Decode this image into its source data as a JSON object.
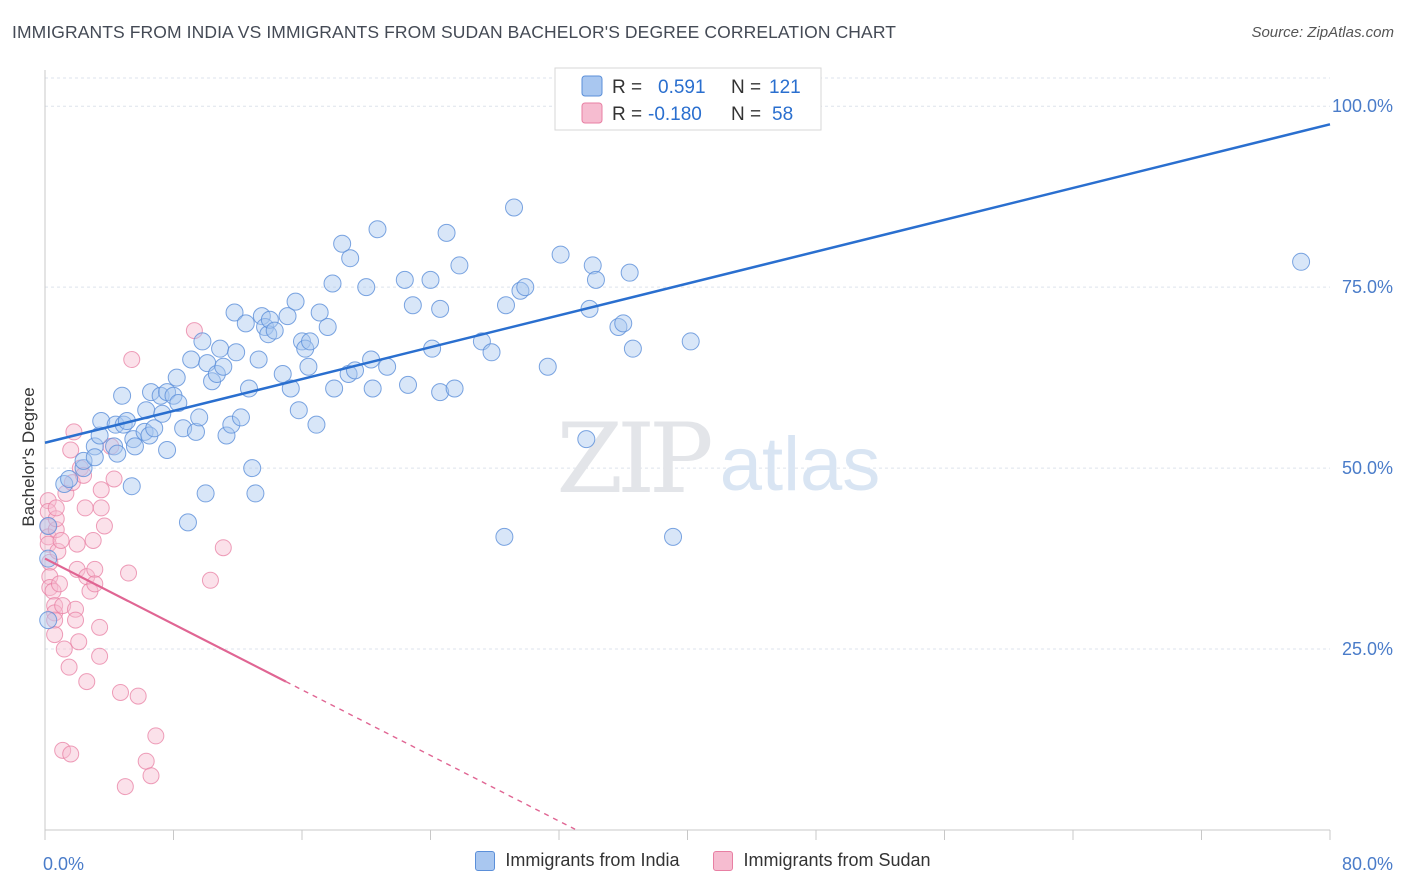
{
  "title": "IMMIGRANTS FROM INDIA VS IMMIGRANTS FROM SUDAN BACHELOR'S DEGREE CORRELATION CHART",
  "source": "Source: ZipAtlas.com",
  "watermark": {
    "zip": "ZIP",
    "atlas": "atlas"
  },
  "colors": {
    "india_fill": "#a9c7f0",
    "india_stroke": "#5b8fd9",
    "india_line": "#2a6fcf",
    "sudan_fill": "#f6bcd0",
    "sudan_stroke": "#e87fa3",
    "sudan_line": "#e06593",
    "tick_label": "#4a7cc9",
    "grid": "#dde3ec"
  },
  "legend": {
    "rows": [
      {
        "r_label": "R =",
        "r_value": "0.591",
        "n_label": "N =",
        "n_value": "121"
      },
      {
        "r_label": "R =",
        "r_value": "-0.180",
        "n_label": "N =",
        "n_value": "58"
      }
    ]
  },
  "bottom_legend": {
    "india": "Immigrants from India",
    "sudan": "Immigrants from Sudan"
  },
  "chart_data": {
    "type": "scatter",
    "xlim": [
      0,
      80
    ],
    "ylim": [
      0,
      105
    ],
    "ylabel": "Bachelor's Degree",
    "x_tick_labels": [
      {
        "value": 0,
        "label": "0.0%"
      },
      {
        "value": 80,
        "label": "80.0%"
      }
    ],
    "y_tick_labels": [
      {
        "value": 25,
        "label": "25.0%"
      },
      {
        "value": 50,
        "label": "50.0%"
      },
      {
        "value": 75,
        "label": "75.0%"
      },
      {
        "value": 100,
        "label": "100.0%"
      }
    ],
    "grid": true,
    "series": [
      {
        "name": "Immigrants from India",
        "trend": {
          "x0": 0,
          "y0": 53.5,
          "x1": 80,
          "y1": 97.5
        },
        "points": [
          [
            0.2,
            42
          ],
          [
            0.2,
            37.5
          ],
          [
            0.2,
            29
          ],
          [
            1.2,
            47.8
          ],
          [
            1.5,
            48.5
          ],
          [
            2.4,
            50
          ],
          [
            2.4,
            51
          ],
          [
            3.1,
            53
          ],
          [
            3.1,
            51.5
          ],
          [
            3.4,
            54.5
          ],
          [
            3.5,
            56.5
          ],
          [
            4.3,
            53
          ],
          [
            4.4,
            56
          ],
          [
            4.5,
            52
          ],
          [
            4.8,
            60
          ],
          [
            4.9,
            56
          ],
          [
            5.1,
            56.5
          ],
          [
            5.4,
            47.5
          ],
          [
            5.5,
            54
          ],
          [
            5.6,
            53
          ],
          [
            6.2,
            55
          ],
          [
            6.3,
            58
          ],
          [
            6.5,
            54.5
          ],
          [
            6.6,
            60.5
          ],
          [
            6.8,
            55.5
          ],
          [
            7.2,
            60
          ],
          [
            7.3,
            57.5
          ],
          [
            7.6,
            60.5
          ],
          [
            7.6,
            52.5
          ],
          [
            8,
            60
          ],
          [
            8.2,
            62.5
          ],
          [
            8.3,
            59
          ],
          [
            8.6,
            55.5
          ],
          [
            8.9,
            42.5
          ],
          [
            9.1,
            65
          ],
          [
            9.4,
            55
          ],
          [
            9.6,
            57
          ],
          [
            9.8,
            67.5
          ],
          [
            10,
            46.5
          ],
          [
            10.1,
            64.5
          ],
          [
            10.4,
            62
          ],
          [
            10.7,
            63
          ],
          [
            10.9,
            66.5
          ],
          [
            11.1,
            64
          ],
          [
            11.3,
            54.5
          ],
          [
            11.6,
            56
          ],
          [
            11.8,
            71.5
          ],
          [
            11.9,
            66
          ],
          [
            12.2,
            57
          ],
          [
            12.5,
            70
          ],
          [
            12.7,
            61
          ],
          [
            12.9,
            50
          ],
          [
            13.1,
            46.5
          ],
          [
            13.3,
            65
          ],
          [
            13.5,
            71
          ],
          [
            13.7,
            69.5
          ],
          [
            13.9,
            68.5
          ],
          [
            14,
            70.5
          ],
          [
            14.3,
            69
          ],
          [
            14.8,
            63
          ],
          [
            15.1,
            71
          ],
          [
            15.3,
            61
          ],
          [
            15.6,
            73
          ],
          [
            15.8,
            58
          ],
          [
            16,
            67.5
          ],
          [
            16.2,
            66.5
          ],
          [
            16.4,
            64
          ],
          [
            16.5,
            67.5
          ],
          [
            16.9,
            56
          ],
          [
            17.1,
            71.5
          ],
          [
            17.6,
            69.5
          ],
          [
            17.9,
            75.5
          ],
          [
            18,
            61
          ],
          [
            18.5,
            81
          ],
          [
            18.9,
            63
          ],
          [
            19,
            79
          ],
          [
            19.3,
            63.5
          ],
          [
            20,
            75
          ],
          [
            20.3,
            65
          ],
          [
            20.4,
            61
          ],
          [
            20.7,
            83
          ],
          [
            21.3,
            64
          ],
          [
            22.4,
            76
          ],
          [
            22.6,
            61.5
          ],
          [
            22.9,
            72.5
          ],
          [
            24,
            76
          ],
          [
            24.1,
            66.5
          ],
          [
            24.6,
            72
          ],
          [
            24.6,
            60.5
          ],
          [
            25,
            82.5
          ],
          [
            25.5,
            61
          ],
          [
            25.8,
            78
          ],
          [
            27.2,
            67.5
          ],
          [
            27.8,
            66
          ],
          [
            28.6,
            40.5
          ],
          [
            28.7,
            72.5
          ],
          [
            29.2,
            86
          ],
          [
            29.6,
            74.5
          ],
          [
            29.9,
            75
          ],
          [
            31.3,
            64
          ],
          [
            32.1,
            79.5
          ],
          [
            33.7,
            54
          ],
          [
            33.9,
            72
          ],
          [
            34.1,
            78
          ],
          [
            34.3,
            76
          ],
          [
            35.7,
            69.5
          ],
          [
            36,
            70
          ],
          [
            36.4,
            77
          ],
          [
            36.6,
            66.5
          ],
          [
            39.1,
            40.5
          ],
          [
            40.2,
            67.5
          ],
          [
            78.2,
            78.5
          ]
        ]
      },
      {
        "name": "Immigrants from Sudan",
        "trend": {
          "x0": 0,
          "y0": 37.5,
          "x1": 15,
          "y1": 20.5,
          "dash_to_x": 33
        },
        "points": [
          [
            0.2,
            45.5
          ],
          [
            0.2,
            44
          ],
          [
            0.2,
            42
          ],
          [
            0.2,
            40.5
          ],
          [
            0.2,
            39.5
          ],
          [
            0.3,
            37
          ],
          [
            0.3,
            35
          ],
          [
            0.3,
            33.5
          ],
          [
            0.5,
            33
          ],
          [
            0.6,
            31
          ],
          [
            0.6,
            30
          ],
          [
            0.6,
            29
          ],
          [
            0.6,
            27
          ],
          [
            0.7,
            41.5
          ],
          [
            0.7,
            43
          ],
          [
            0.7,
            44.5
          ],
          [
            0.8,
            38.5
          ],
          [
            0.9,
            34
          ],
          [
            1,
            40
          ],
          [
            1.1,
            31
          ],
          [
            1.1,
            11
          ],
          [
            1.2,
            25
          ],
          [
            1.3,
            46.5
          ],
          [
            1.5,
            22.5
          ],
          [
            1.6,
            10.5
          ],
          [
            1.6,
            52.5
          ],
          [
            1.7,
            48
          ],
          [
            1.8,
            55
          ],
          [
            1.9,
            30.5
          ],
          [
            1.9,
            29
          ],
          [
            2,
            39.5
          ],
          [
            2,
            36
          ],
          [
            2.1,
            26
          ],
          [
            2.2,
            50
          ],
          [
            2.4,
            49
          ],
          [
            2.5,
            44.5
          ],
          [
            2.6,
            20.5
          ],
          [
            2.6,
            35
          ],
          [
            2.8,
            33
          ],
          [
            3,
            40
          ],
          [
            3.1,
            36
          ],
          [
            3.1,
            34
          ],
          [
            3.4,
            28
          ],
          [
            3.4,
            24
          ],
          [
            3.5,
            44.5
          ],
          [
            3.5,
            47
          ],
          [
            3.7,
            42
          ],
          [
            4.1,
            53
          ],
          [
            4.3,
            48.5
          ],
          [
            4.7,
            19
          ],
          [
            5,
            6
          ],
          [
            5.2,
            35.5
          ],
          [
            5.4,
            65
          ],
          [
            5.8,
            18.5
          ],
          [
            6.3,
            9.5
          ],
          [
            6.6,
            7.5
          ],
          [
            6.9,
            13
          ],
          [
            9.3,
            69
          ],
          [
            10.3,
            34.5
          ],
          [
            11.1,
            39
          ]
        ]
      }
    ]
  }
}
